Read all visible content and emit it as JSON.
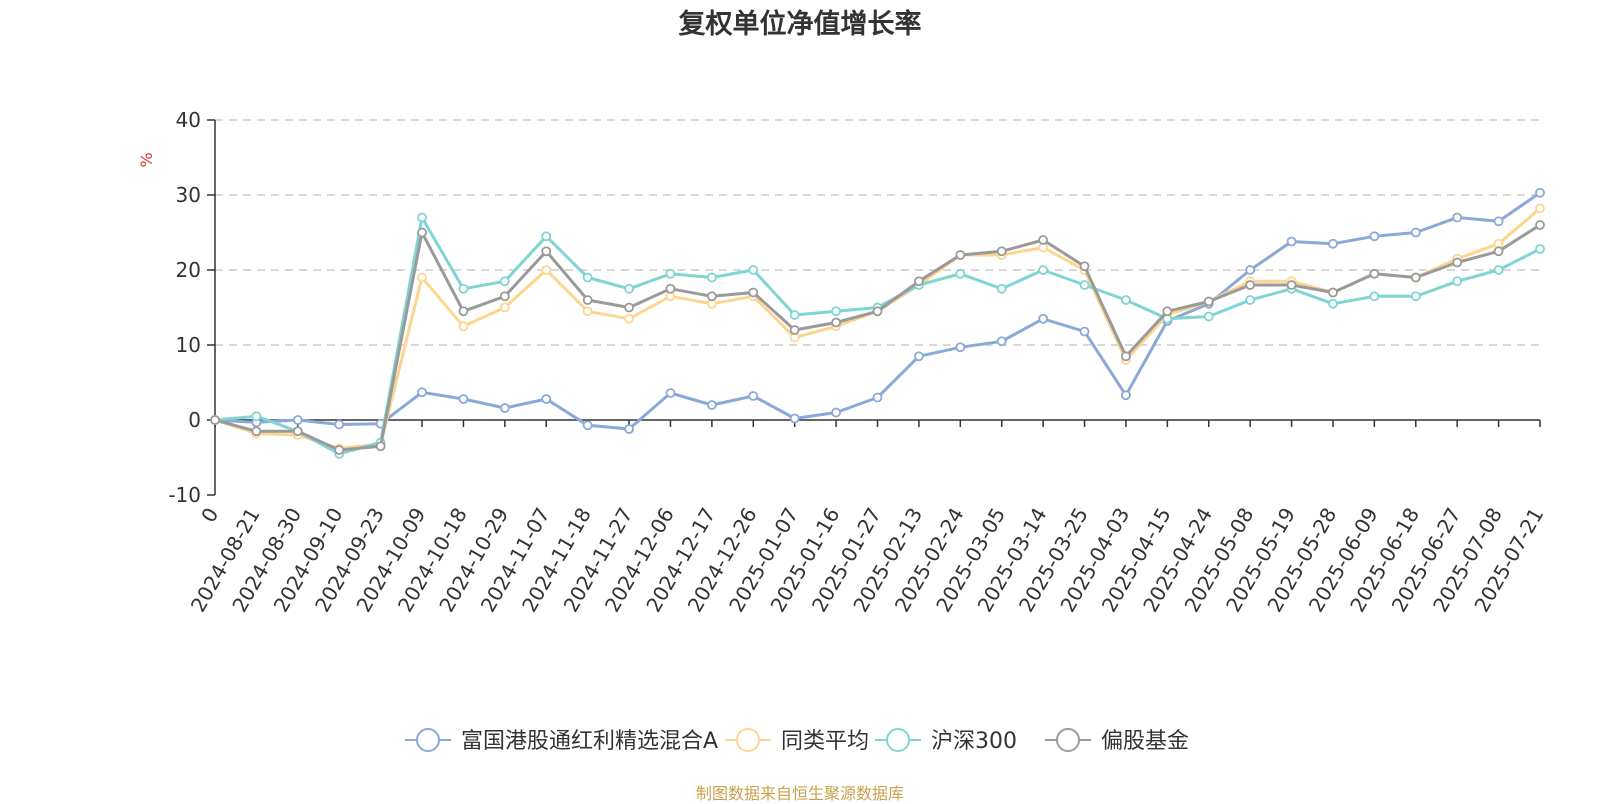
{
  "chart_data": {
    "type": "line",
    "title": "复权单位净值增长率",
    "ylabel": "%",
    "ylim": [
      -10,
      40
    ],
    "yticks": [
      -10,
      0,
      10,
      20,
      30,
      40
    ],
    "grid": true,
    "legend_position": "bottom",
    "x_labels": [
      "0",
      "2024-08-21",
      "2024-08-30",
      "2024-09-10",
      "2024-09-23",
      "2024-10-09",
      "2024-10-18",
      "2024-10-29",
      "2024-11-07",
      "2024-11-18",
      "2024-11-27",
      "2024-12-06",
      "2024-12-17",
      "2024-12-26",
      "2025-01-07",
      "2025-01-16",
      "2025-01-27",
      "2025-02-13",
      "2025-02-24",
      "2025-03-05",
      "2025-03-14",
      "2025-03-25",
      "2025-04-03",
      "2025-04-15",
      "2025-04-24",
      "2025-05-08",
      "2025-05-19",
      "2025-05-28",
      "2025-06-09",
      "2025-06-18",
      "2025-06-27",
      "2025-07-08",
      "2025-07-21"
    ],
    "series": [
      {
        "name": "富国港股通红利精选混合A",
        "color": "#8aa8d8",
        "values": [
          0,
          -0.3,
          0,
          -0.6,
          -0.5,
          3.7,
          2.8,
          1.6,
          2.8,
          -0.7,
          -1.2,
          3.6,
          2.0,
          3.2,
          0.2,
          1.0,
          3.0,
          8.5,
          9.7,
          10.5,
          13.5,
          11.8,
          3.3,
          13.2,
          15.5,
          20.0,
          23.8,
          23.5,
          24.5,
          25.0,
          27.0,
          26.5,
          30.3
        ]
      },
      {
        "name": "同类平均",
        "color": "#fcd68e",
        "values": [
          0,
          -1.8,
          -2.0,
          -3.8,
          -3.2,
          19.0,
          12.5,
          15.0,
          20.0,
          14.5,
          13.5,
          16.5,
          15.5,
          16.5,
          11.0,
          12.5,
          14.5,
          18.0,
          22.0,
          22.0,
          23.0,
          20.0,
          8.0,
          14.0,
          15.8,
          18.5,
          18.5,
          17.0,
          19.5,
          19.0,
          21.5,
          23.5,
          28.2
        ]
      },
      {
        "name": "沪深300",
        "color": "#7fd4d4",
        "values": [
          0,
          0.5,
          -1.5,
          -4.5,
          -3.0,
          27.0,
          17.5,
          18.5,
          24.5,
          19.0,
          17.5,
          19.5,
          19.0,
          20.0,
          14.0,
          14.5,
          15.0,
          18.0,
          19.5,
          17.5,
          20.0,
          18.0,
          16.0,
          13.5,
          13.8,
          16.0,
          17.5,
          15.5,
          16.5,
          16.5,
          18.5,
          20.0,
          22.8
        ]
      },
      {
        "name": "偏股基金",
        "color": "#9a9a9a",
        "values": [
          0,
          -1.5,
          -1.5,
          -4.0,
          -3.5,
          25.0,
          14.5,
          16.5,
          22.5,
          16.0,
          15.0,
          17.5,
          16.5,
          17.0,
          12.0,
          13.0,
          14.5,
          18.5,
          22.0,
          22.5,
          24.0,
          20.5,
          8.5,
          14.5,
          15.8,
          18.0,
          18.0,
          17.0,
          19.5,
          19.0,
          21.0,
          22.5,
          26.0
        ]
      }
    ]
  },
  "source_note": "制图数据来自恒生聚源数据库"
}
